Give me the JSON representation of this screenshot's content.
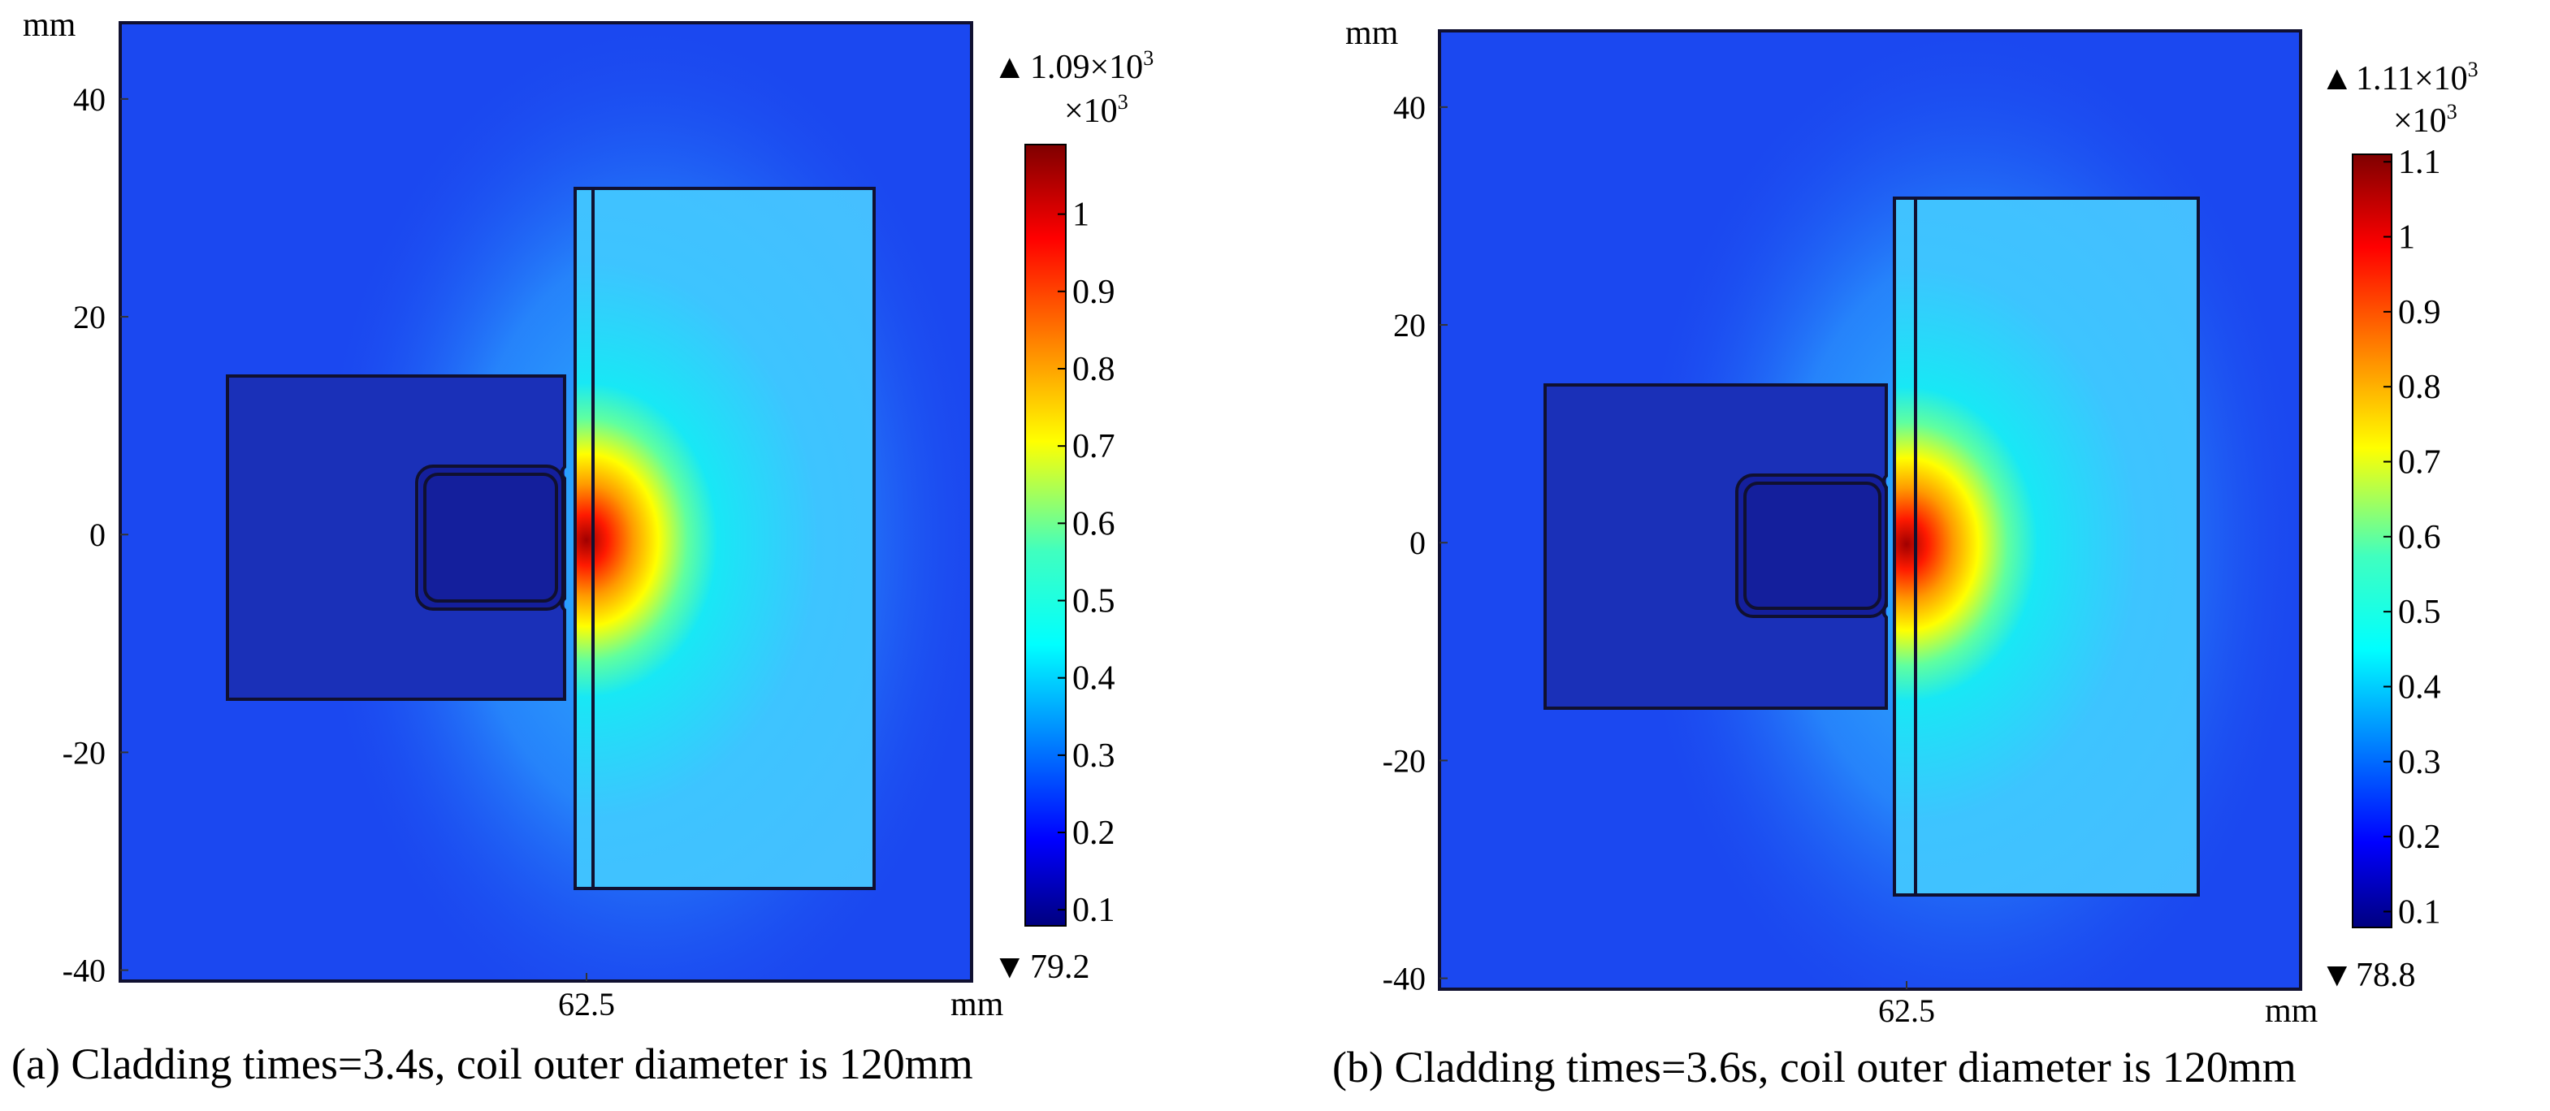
{
  "colors": {
    "jet": [
      "#00007f",
      "#0000ff",
      "#007fff",
      "#00ffff",
      "#7fff7f",
      "#ffff00",
      "#ff7f00",
      "#ff0000",
      "#7f0000"
    ],
    "background_field": "#1b48f0"
  },
  "chart_data": [
    {
      "type": "heatmap",
      "panel_label": "(a)",
      "caption": "(a)  Cladding times=3.4s, coil outer diameter is 120mm",
      "x_axis": {
        "unit": "mm",
        "tick_labels": [
          "62.5"
        ],
        "ticks": [
          62.5
        ]
      },
      "y_axis": {
        "unit": "mm",
        "tick_labels": [
          "40",
          "20",
          "0",
          "-20",
          "-40"
        ],
        "ticks": [
          40,
          20,
          0,
          -20,
          -40
        ],
        "ylim": [
          -41,
          47
        ]
      },
      "colorbar": {
        "max_label": "1.09×10",
        "max_exponent": "3",
        "scale_label": "×10",
        "scale_exponent": "3",
        "min_label": "79.2",
        "tick_labels": [
          "1",
          "0.9",
          "0.8",
          "0.7",
          "0.6",
          "0.5",
          "0.4",
          "0.3",
          "0.2",
          "0.1"
        ],
        "ticks": [
          1.0,
          0.9,
          0.8,
          0.7,
          0.6,
          0.5,
          0.4,
          0.3,
          0.2,
          0.1
        ],
        "range": [
          0.0792,
          1.09
        ],
        "colormap": "jet"
      }
    },
    {
      "type": "heatmap",
      "panel_label": "(b)",
      "caption": "(b)  Cladding times=3.6s, coil outer diameter is 120mm",
      "x_axis": {
        "unit": "mm",
        "tick_labels": [
          "62.5"
        ],
        "ticks": [
          62.5
        ]
      },
      "y_axis": {
        "unit": "mm",
        "tick_labels": [
          "40",
          "20",
          "0",
          "-20",
          "-40"
        ],
        "ticks": [
          40,
          20,
          0,
          -20,
          -40
        ],
        "ylim": [
          -41,
          47
        ]
      },
      "colorbar": {
        "max_label": "1.11×10",
        "max_exponent": "3",
        "scale_label": "×10",
        "scale_exponent": "3",
        "min_label": "78.8",
        "tick_labels": [
          "1.1",
          "1",
          "0.9",
          "0.8",
          "0.7",
          "0.6",
          "0.5",
          "0.4",
          "0.3",
          "0.2",
          "0.1"
        ],
        "ticks": [
          1.1,
          1.0,
          0.9,
          0.8,
          0.7,
          0.6,
          0.5,
          0.4,
          0.3,
          0.2,
          0.1
        ],
        "range": [
          0.0788,
          1.11
        ],
        "colormap": "jet"
      }
    }
  ]
}
